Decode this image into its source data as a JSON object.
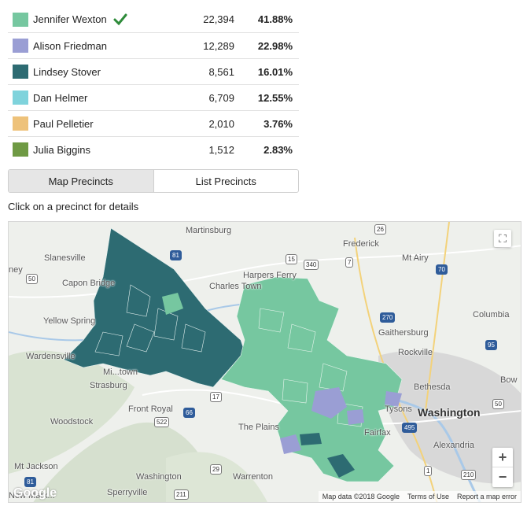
{
  "candidates": [
    {
      "name": "Jennifer Wexton",
      "votes": "22,394",
      "pct": "41.88%",
      "color": "#76c7a0",
      "winner": true
    },
    {
      "name": "Alison Friedman",
      "votes": "12,289",
      "pct": "22.98%",
      "color": "#9a9ed4",
      "winner": false
    },
    {
      "name": "Lindsey Stover",
      "votes": "8,561",
      "pct": "16.01%",
      "color": "#2d6b72",
      "winner": false
    },
    {
      "name": "Dan Helmer",
      "votes": "6,709",
      "pct": "12.55%",
      "color": "#7fd3dc",
      "winner": false
    },
    {
      "name": "Paul Pelletier",
      "votes": "2,010",
      "pct": "3.76%",
      "color": "#eec27a",
      "winner": false
    },
    {
      "name": "Julia Biggins",
      "votes": "1,512",
      "pct": "2.83%",
      "color": "#6f9a44",
      "winner": false
    }
  ],
  "toggle": {
    "map_label": "Map Precincts",
    "list_label": "List Precincts"
  },
  "hint": "Click on a precinct for details",
  "map": {
    "place_labels": {
      "martinsburg": "Martinsburg",
      "frederick": "Frederick",
      "slanesville": "Slanesville",
      "mt_airy": "Mt Airy",
      "capon_bridge": "Capon Bridge",
      "harpers_ferry": "Harpers Ferry",
      "charles_town": "Charles Town",
      "yellow_spring": "Yellow Spring",
      "gaithersburg": "Gaithersburg",
      "columbia": "Columbia",
      "wardensville": "Wardensville",
      "rockville": "Rockville",
      "strasburg": "Strasburg",
      "bethesda": "Bethesda",
      "front_royal": "Front Royal",
      "tysons": "Tysons",
      "washington_dc": "Washington",
      "woodstock": "Woodstock",
      "the_plains": "The Plains",
      "fairfax": "Fairfax",
      "alexandria": "Alexandria",
      "mt_jackson": "Mt Jackson",
      "washington_va": "Washington",
      "warrenton": "Warrenton",
      "sperryville": "Sperryville",
      "michelltown": "Mi...town",
      "ney": "ney",
      "bow": "Bow",
      "new_market": "New Mark..."
    },
    "shields": [
      "50",
      "81",
      "340",
      "26",
      "70",
      "270",
      "95",
      "66",
      "522",
      "17",
      "29",
      "211",
      "495",
      "1",
      "210",
      "15",
      "7",
      "81",
      "50"
    ],
    "attribution": {
      "data": "Map data ©2018 Google",
      "terms": "Terms of Use",
      "report": "Report a map error"
    },
    "logo": "Google",
    "zoom_in": "+",
    "zoom_out": "−",
    "fullscreen": "⛶"
  }
}
